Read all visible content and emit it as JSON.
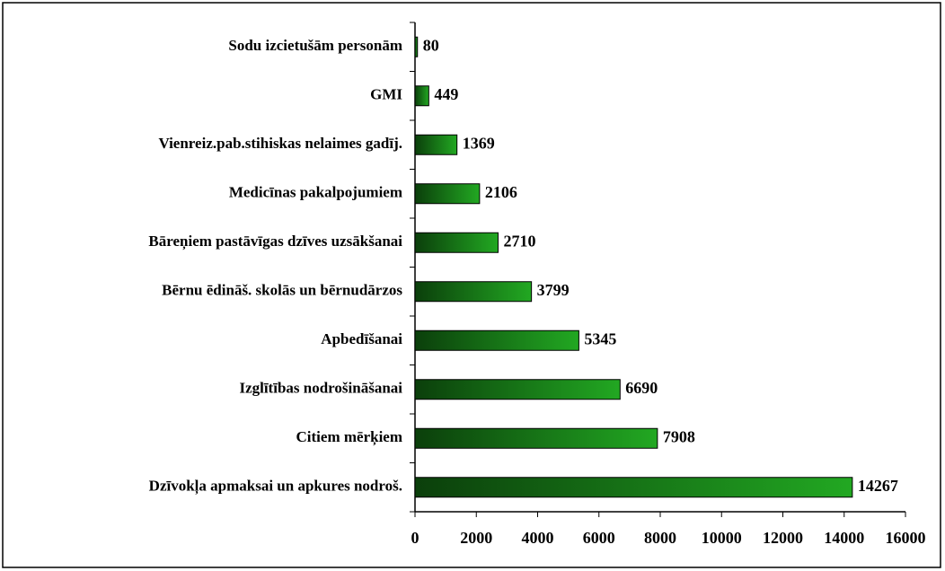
{
  "chart_data": {
    "type": "bar",
    "orientation": "horizontal",
    "categories": [
      "Sodu izcietušām personām",
      "GMI",
      "Vienreiz.pab.stihiskas nelaimes gadīj.",
      "Medicīnas pakalpojumiem",
      "Bāreņiem pastāvīgas dzīves uzsākšanai",
      "Bērnu ēdināš. skolās un bērnudārzos",
      "Apbedīšanai",
      "Izglītības nodrošināšanai",
      "Citiem mērķiem",
      "Dzīvokļa apmaksai un apkures nodroš."
    ],
    "values": [
      80,
      449,
      1369,
      2106,
      2710,
      3799,
      5345,
      6690,
      7908,
      14267
    ],
    "color": "#22a822",
    "xlim": [
      0,
      16000
    ],
    "xticks": [
      0,
      2000,
      4000,
      6000,
      8000,
      10000,
      12000,
      14000,
      16000
    ]
  }
}
